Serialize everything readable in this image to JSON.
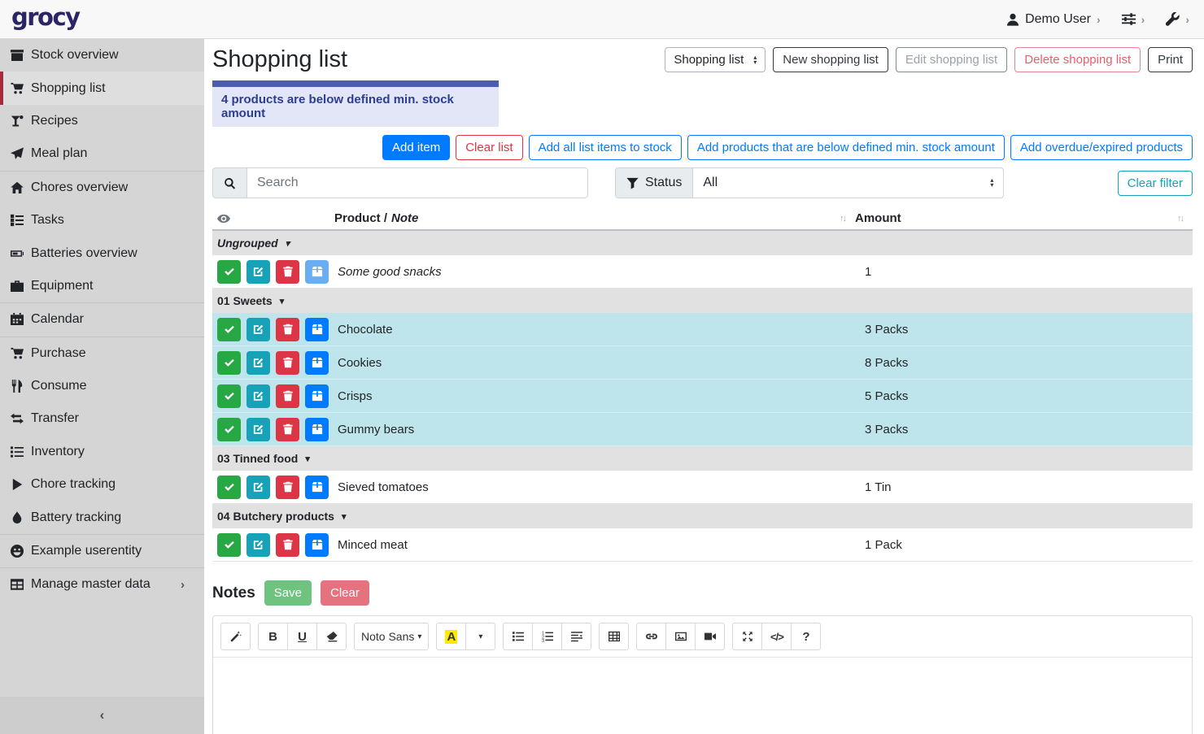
{
  "app": {
    "logo": "grocy"
  },
  "header": {
    "user": "Demo User"
  },
  "glyphs": {
    "caret_down": "▾",
    "chevron_right": "›",
    "chevron_left": "‹",
    "sort": "↑↓"
  },
  "colors": {
    "primary": "#007bff",
    "danger": "#dc3545",
    "success": "#28a745",
    "teal": "#17a2b8",
    "row_highlight": "#bee5eb",
    "toast_bar": "#4c5cae",
    "toast_bg": "#e2e6f6",
    "toast_text": "#2c3e92",
    "active_item_border": "#a32b3c",
    "logo": "#2b2465"
  },
  "sidebar": {
    "items": [
      {
        "label": "Stock overview",
        "icon": "box-icon"
      },
      {
        "label": "Shopping list",
        "icon": "cart-icon",
        "active": true
      },
      {
        "label": "Recipes",
        "icon": "cocktail-icon"
      },
      {
        "label": "Meal plan",
        "icon": "paper-plane-icon"
      },
      {
        "label": "Chores overview",
        "icon": "home-icon",
        "divider_before": true
      },
      {
        "label": "Tasks",
        "icon": "tasks-icon"
      },
      {
        "label": "Batteries overview",
        "icon": "battery-icon"
      },
      {
        "label": "Equipment",
        "icon": "toolbox-icon"
      },
      {
        "label": "Calendar",
        "icon": "calendar-icon",
        "divider_before": true
      },
      {
        "label": "Purchase",
        "icon": "cart-icon",
        "divider_before": true
      },
      {
        "label": "Consume",
        "icon": "utensils-icon"
      },
      {
        "label": "Transfer",
        "icon": "exchange-icon"
      },
      {
        "label": "Inventory",
        "icon": "list-icon"
      },
      {
        "label": "Chore tracking",
        "icon": "play-icon"
      },
      {
        "label": "Battery tracking",
        "icon": "droplet-icon"
      },
      {
        "label": "Example userentity",
        "icon": "smiley-icon",
        "divider_before": true
      },
      {
        "label": "Manage master data",
        "icon": "table-icon",
        "divider_before": true,
        "has_submenu": true
      }
    ]
  },
  "page": {
    "title": "Shopping list",
    "list_select": {
      "value": "Shopping list"
    },
    "list_buttons": [
      {
        "label": "New shopping list",
        "style": "outline-dark",
        "name": "new-shopping-list-button"
      },
      {
        "label": "Edit shopping list",
        "style": "outline-muted",
        "name": "edit-shopping-list-button"
      },
      {
        "label": "Delete shopping list",
        "style": "outline-danger-muted",
        "name": "delete-shopping-list-button"
      },
      {
        "label": "Print",
        "style": "outline-dark",
        "name": "print-button"
      }
    ],
    "toast": "4 products are below defined min. stock amount",
    "actions": [
      {
        "label": "Add item",
        "style": "solid-primary",
        "name": "add-item-button"
      },
      {
        "label": "Clear list",
        "style": "outline-danger",
        "name": "clear-list-button"
      },
      {
        "label": "Add all list items to stock",
        "style": "outline-primary",
        "name": "add-all-items-to-stock-button"
      },
      {
        "label": "Add products that are below defined min. stock amount",
        "style": "outline-primary",
        "name": "add-below-min-stock-button"
      },
      {
        "label": "Add overdue/expired products",
        "style": "outline-primary",
        "name": "add-overdue-expired-button"
      }
    ],
    "filter": {
      "search_placeholder": "Search",
      "status_label": "Status",
      "status_value": "All",
      "clear_label": "Clear filter"
    }
  },
  "table": {
    "product_label": "Product /",
    "note_label": "Note",
    "amount_label": "Amount",
    "groups": [
      {
        "label": "Ungrouped",
        "italic": true,
        "rows": [
          {
            "product": "Some good snacks",
            "italic": true,
            "amount": "1",
            "highlighted": false,
            "stock_disabled": true
          }
        ]
      },
      {
        "label": "01 Sweets",
        "rows": [
          {
            "product": "Chocolate",
            "amount": "3 Packs",
            "highlighted": true
          },
          {
            "product": "Cookies",
            "amount": "8 Packs",
            "highlighted": true
          },
          {
            "product": "Crisps",
            "amount": "5 Packs",
            "highlighted": true
          },
          {
            "product": "Gummy bears",
            "amount": "3 Packs",
            "highlighted": true
          }
        ]
      },
      {
        "label": "03 Tinned food",
        "rows": [
          {
            "product": "Sieved tomatoes",
            "amount": "1 Tin"
          }
        ]
      },
      {
        "label": "04 Butchery products",
        "rows": [
          {
            "product": "Minced meat",
            "amount": "1 Pack"
          }
        ]
      }
    ]
  },
  "notes": {
    "label": "Notes",
    "save_label": "Save",
    "clear_label": "Clear"
  },
  "editor": {
    "groups": [
      {
        "items": [
          {
            "icon": "magic-wand-icon",
            "name": "style-button"
          }
        ]
      },
      {
        "items": [
          {
            "text": "B",
            "style": "bold",
            "name": "bold-button"
          },
          {
            "text": "U",
            "style": "underline",
            "name": "underline-button"
          },
          {
            "icon": "eraser-icon",
            "name": "remove-format-button"
          }
        ]
      },
      {
        "items": [
          {
            "text": "Noto Sans",
            "caret": true,
            "style": "font",
            "name": "font-family-button"
          }
        ]
      },
      {
        "items": [
          {
            "text": "A",
            "style": "highlight",
            "name": "text-color-button"
          },
          {
            "text": "",
            "caret": true,
            "name": "color-picker-caret-button"
          }
        ]
      },
      {
        "items": [
          {
            "icon": "unordered-list-icon",
            "name": "unordered-list-button"
          },
          {
            "icon": "ordered-list-icon",
            "name": "ordered-list-button"
          },
          {
            "icon": "align-left-icon",
            "name": "paragraph-button"
          }
        ]
      },
      {
        "items": [
          {
            "icon": "table-grid-icon",
            "name": "table-button"
          }
        ]
      },
      {
        "items": [
          {
            "icon": "link-icon",
            "name": "link-button"
          },
          {
            "icon": "image-icon",
            "name": "picture-button"
          },
          {
            "icon": "video-icon",
            "name": "video-button"
          }
        ]
      },
      {
        "items": [
          {
            "icon": "expand-icon",
            "name": "fullscreen-button"
          },
          {
            "text": "</>",
            "style": "code",
            "name": "code-view-button"
          },
          {
            "text": "?",
            "style": "bold",
            "name": "help-button"
          }
        ]
      }
    ]
  }
}
